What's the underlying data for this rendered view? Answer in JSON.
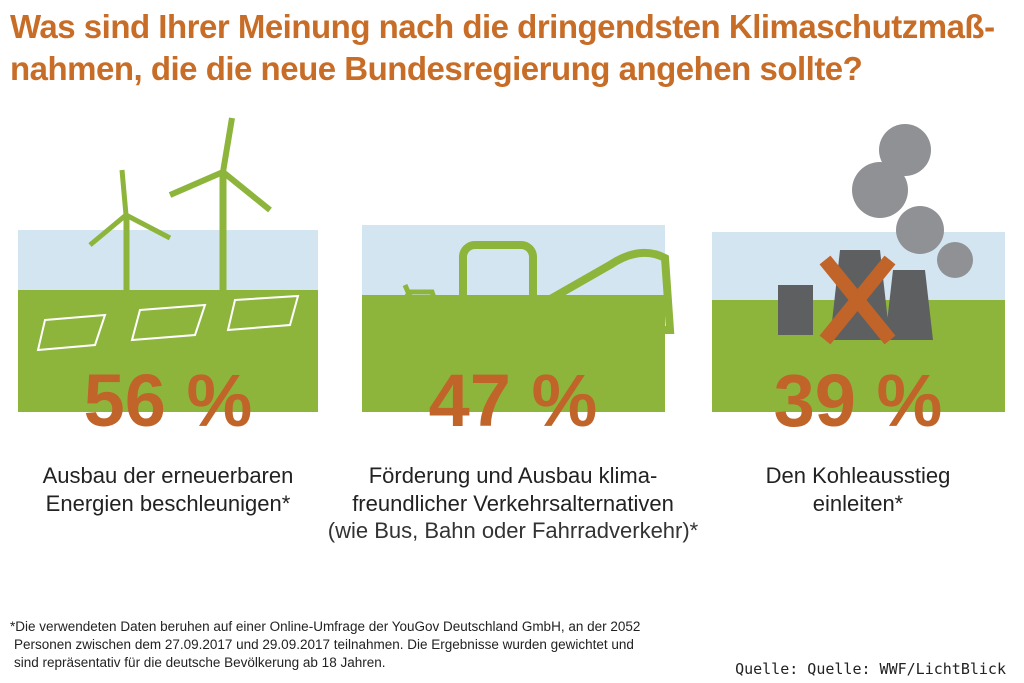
{
  "title": {
    "lines": [
      "Was sind Ihrer Meinung nach die dringendsten Klimaschutzmaß-",
      "nahmen, die die neue Bundesregierung angehen sollte?"
    ]
  },
  "items": [
    {
      "percent": "56 %",
      "label_lines": [
        "Ausbau der erneuerbaren",
        "Energien beschleunigen*"
      ]
    },
    {
      "percent": "47 %",
      "label_lines": [
        "Förderung und Ausbau klima-",
        "freundlicher Verkehrsalternativen"
      ],
      "note": "(wie Bus, Bahn oder Fahrradverkehr)*"
    },
    {
      "percent": "39 %",
      "label_lines": [
        "Den Kohleausstieg",
        "einleiten*"
      ]
    }
  ],
  "footnote": {
    "lines": [
      "*Die verwendeten Daten beruhen auf einer Online-Umfrage der YouGov Deutschland GmbH, an der 2052",
      "Personen zwischen dem 27.09.2017 und 29.09.2017 teilnahmen. Die Ergebnisse wurden gewichtet und",
      "sind repräsentativ für die deutsche Bevölkerung ab 18 Jahren."
    ]
  },
  "source": "Quelle: Quelle: WWF/LichtBlick"
}
